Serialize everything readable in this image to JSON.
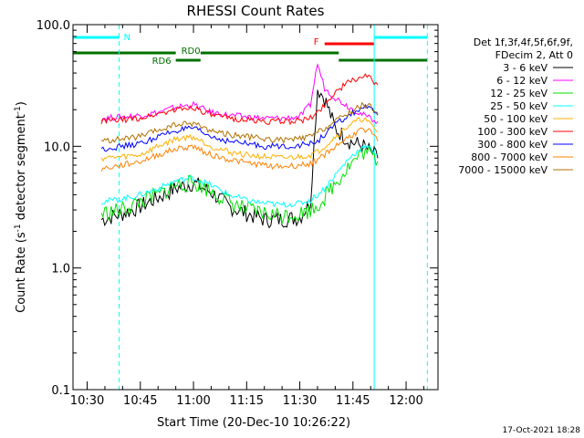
{
  "chart_data": {
    "type": "line",
    "title": "RHESSI Count Rates",
    "xlabel": "Start Time (20-Dec-10 10:26:22)",
    "ylabel_main": "Count Rate (s",
    "ylabel_sup1": "-1",
    "ylabel_mid": " detector segment",
    "ylabel_sup2": "-1",
    "ylabel_end": ")",
    "y_scale": "log",
    "ylim": [
      0.1,
      100
    ],
    "xlim": [
      "10:26",
      "12:09"
    ],
    "x_ticks": [
      "10:30",
      "10:45",
      "11:00",
      "11:15",
      "11:30",
      "11:45",
      "12:00"
    ],
    "y_ticks": [
      "0.1",
      "1.0",
      "10.0",
      "100.0"
    ],
    "legend_header": [
      "Det 1f,3f,4f,5f,6f,9f,",
      "FDecim 2, Att 0"
    ],
    "legend_position": "right",
    "timestamp": "17-Oct-2021 18:28",
    "time_x": [
      "10:34",
      "10:40",
      "10:45",
      "10:50",
      "10:55",
      "11:00",
      "11:05",
      "11:10",
      "11:15",
      "11:20",
      "11:25",
      "11:30",
      "11:33",
      "11:35",
      "11:37",
      "11:40",
      "11:44",
      "11:48",
      "11:50",
      "11:52"
    ],
    "series": [
      {
        "name": "3 - 6 keV",
        "color": "#000000",
        "values": [
          2.5,
          2.8,
          3.2,
          3.8,
          4.5,
          5.0,
          4.2,
          3.2,
          2.8,
          2.5,
          2.5,
          2.6,
          3.5,
          30,
          25,
          14,
          11,
          10,
          9,
          8
        ]
      },
      {
        "name": "6 - 12 keV",
        "color": "#ff00ff",
        "values": [
          17,
          17.5,
          18,
          19,
          21,
          22,
          19,
          18,
          17.5,
          17,
          17,
          17.5,
          22,
          48,
          30,
          25,
          21,
          18,
          17,
          16
        ]
      },
      {
        "name": "12 - 25 keV",
        "color": "#00e000",
        "values": [
          2.8,
          3.0,
          3.5,
          4.0,
          4.8,
          5.0,
          4.3,
          3.5,
          3.0,
          2.8,
          2.7,
          2.8,
          3.0,
          3.3,
          3.8,
          5.0,
          7.0,
          9.0,
          8.5,
          7.5
        ]
      },
      {
        "name": "25 - 50 keV",
        "color": "#00ffff",
        "values": [
          3.5,
          3.7,
          4.0,
          4.5,
          5.2,
          5.5,
          4.8,
          4.0,
          3.6,
          3.4,
          3.3,
          3.4,
          3.6,
          4.0,
          4.5,
          5.8,
          8.0,
          10,
          9.5,
          8.5
        ]
      },
      {
        "name": "50 - 100 keV",
        "color": "#ffb000",
        "values": [
          8,
          8.2,
          8.5,
          10,
          11.5,
          12,
          10,
          9,
          8.5,
          8.2,
          8,
          8.2,
          8.5,
          9,
          10,
          12,
          15,
          17,
          15,
          13
        ]
      },
      {
        "name": "100 - 300 keV",
        "color": "#ff0000",
        "values": [
          16,
          16.5,
          17,
          18.5,
          20,
          21,
          18,
          17,
          16.5,
          16,
          16,
          16.2,
          17,
          19,
          22,
          28,
          34,
          38,
          36,
          32
        ]
      },
      {
        "name": "300 - 800 keV",
        "color": "#0000ff",
        "values": [
          9.5,
          10,
          10.5,
          12,
          13.5,
          14,
          12,
          11,
          10.5,
          10,
          10,
          10.2,
          10.5,
          11,
          12.5,
          15,
          18,
          21,
          20,
          18
        ]
      },
      {
        "name": "800 - 7000 keV",
        "color": "#ff8000",
        "values": [
          6.5,
          7,
          7.5,
          8.5,
          9.5,
          10,
          8.5,
          7.8,
          7.3,
          7,
          6.8,
          7,
          7.2,
          7.8,
          8.5,
          10,
          12,
          14,
          13,
          11
        ]
      },
      {
        "name": "7000 - 15000 keV",
        "color": "#b07000",
        "values": [
          11,
          11.5,
          12,
          13.5,
          15,
          15.5,
          13.5,
          12.5,
          12,
          11.5,
          11.2,
          11.5,
          12,
          13,
          14,
          16,
          19,
          22,
          21,
          19
        ]
      }
    ],
    "vertical_markers": [
      {
        "time": "10:26",
        "style": "solid",
        "color": "#00ffff"
      },
      {
        "time": "10:39",
        "style": "dashed",
        "color": "#00ffff"
      },
      {
        "time": "11:51",
        "style": "solid",
        "color": "#00ffff"
      },
      {
        "time": "12:06",
        "style": "dashed",
        "color": "#00ffff"
      }
    ],
    "flag_bars": [
      {
        "label": "N",
        "color": "#00ffff",
        "segments": [
          [
            "10:26",
            "10:39"
          ],
          [
            "11:51",
            "12:06"
          ]
        ]
      },
      {
        "label": "RD0",
        "color": "#007000",
        "segments": [
          [
            "10:26",
            "10:55"
          ],
          [
            "11:02",
            "11:41"
          ]
        ]
      },
      {
        "label": "RD6",
        "color": "#007000",
        "segments": [
          [
            "10:55",
            "11:02"
          ],
          [
            "11:41",
            "12:06"
          ]
        ]
      },
      {
        "label": "F",
        "color": "#ff0000",
        "segments": [
          [
            "11:37",
            "11:51"
          ]
        ]
      }
    ]
  }
}
